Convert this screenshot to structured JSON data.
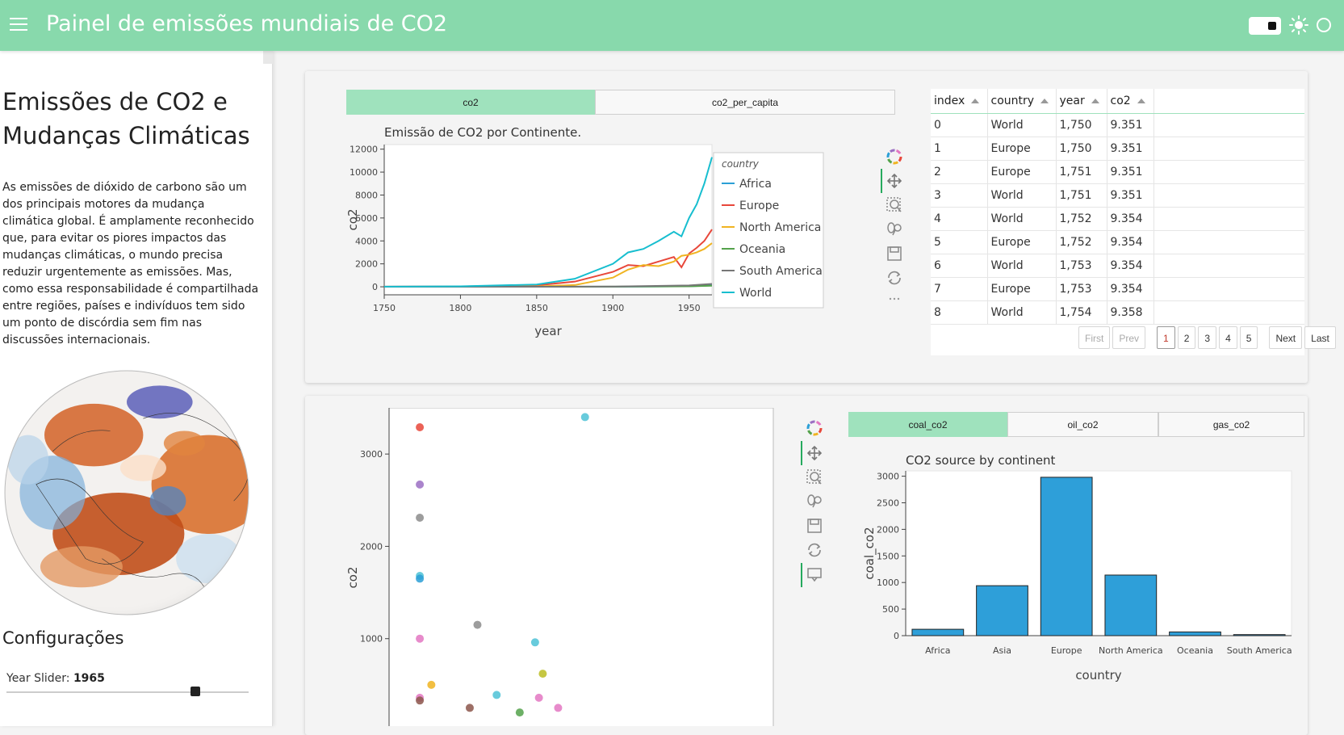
{
  "header": {
    "title": "Painel de emissões mundiais de CO2",
    "icons": [
      "menu-icon",
      "theme-toggle",
      "sun-icon",
      "circle-icon"
    ],
    "bg_color": "#88d9ac"
  },
  "sidebar": {
    "title": "Emissões de CO2 e Mudanças Climáticas",
    "paragraph": "As emissões de dióxido de carbono são um dos principais motores da mudança climática global. É amplamente reconhecido que, para evitar os piores impactos das mudanças climáticas, o mundo precisa reduzir urgentemente as emissões. Mas, como essa responsabilidade é compartilhada entre regiões, países e indivíduos tem sido um ponto de discórdia sem fim nas discussões internacionais.",
    "config_title": "Configurações",
    "slider_label": "Year Slider:",
    "slider_value": "1965",
    "slider_fraction": 0.78
  },
  "top_tabs": [
    {
      "label": "co2",
      "active": true
    },
    {
      "label": "co2_per_capita",
      "active": false
    }
  ],
  "bottom_tabs": [
    {
      "label": "coal_co2",
      "active": true
    },
    {
      "label": "oil_co2",
      "active": false
    },
    {
      "label": "gas_co2",
      "active": false
    }
  ],
  "table": {
    "columns": [
      "index",
      "country",
      "year",
      "co2"
    ],
    "rows": [
      [
        "0",
        "World",
        "1,750",
        "9.351"
      ],
      [
        "1",
        "Europe",
        "1,750",
        "9.351"
      ],
      [
        "2",
        "Europe",
        "1,751",
        "9.351"
      ],
      [
        "3",
        "World",
        "1,751",
        "9.351"
      ],
      [
        "4",
        "World",
        "1,752",
        "9.354"
      ],
      [
        "5",
        "Europe",
        "1,752",
        "9.354"
      ],
      [
        "6",
        "World",
        "1,753",
        "9.354"
      ],
      [
        "7",
        "Europe",
        "1,753",
        "9.354"
      ],
      [
        "8",
        "World",
        "1,754",
        "9.358"
      ]
    ],
    "pager": {
      "first": "First",
      "prev": "Prev",
      "pages": [
        "1",
        "2",
        "3",
        "4",
        "5"
      ],
      "current": "1",
      "next": "Next",
      "last": "Last"
    }
  },
  "toolbar_icons": [
    "bokeh-logo-icon",
    "pan-icon",
    "box-zoom-icon",
    "wheel-zoom-icon",
    "save-icon",
    "reset-icon",
    "hover-icon"
  ],
  "chart_data": [
    {
      "type": "line",
      "title": "Emissão de CO2 por Continente.",
      "xlabel": "year",
      "ylabel": "co2",
      "xlim": [
        1750,
        1965
      ],
      "ylim": [
        -700,
        12400
      ],
      "xticks": [
        "1750",
        "1800",
        "1850",
        "1900",
        "1950"
      ],
      "yticks": [
        "0",
        "2000",
        "4000",
        "6000",
        "8000",
        "10000",
        "12000"
      ],
      "legend_title": "country",
      "legend_position": "right",
      "series": [
        {
          "name": "Africa",
          "color": "#2b9fd6",
          "x": [
            1750,
            1850,
            1900,
            1950,
            1965
          ],
          "values": [
            0,
            0,
            5,
            45,
            120
          ]
        },
        {
          "name": "Europe",
          "color": "#e8473a",
          "x": [
            1750,
            1800,
            1850,
            1875,
            1900,
            1910,
            1920,
            1930,
            1940,
            1945,
            1950,
            1955,
            1960,
            1965
          ],
          "values": [
            9,
            35,
            130,
            450,
            1300,
            1900,
            1800,
            2200,
            2600,
            1700,
            2900,
            3400,
            4000,
            5000
          ]
        },
        {
          "name": "North America",
          "color": "#f0b421",
          "x": [
            1750,
            1800,
            1850,
            1875,
            1900,
            1910,
            1920,
            1930,
            1940,
            1945,
            1950,
            1955,
            1960,
            1965
          ],
          "values": [
            0,
            2,
            30,
            150,
            800,
            1500,
            1900,
            1800,
            2200,
            2700,
            2800,
            3000,
            3300,
            3800
          ]
        },
        {
          "name": "Oceania",
          "color": "#54a24b",
          "x": [
            1750,
            1850,
            1900,
            1950,
            1965
          ],
          "values": [
            0,
            0,
            10,
            40,
            90
          ]
        },
        {
          "name": "South America",
          "color": "#777777",
          "x": [
            1750,
            1850,
            1900,
            1950,
            1965
          ],
          "values": [
            0,
            0,
            20,
            120,
            250
          ]
        },
        {
          "name": "World",
          "color": "#17becf",
          "x": [
            1750,
            1800,
            1850,
            1875,
            1900,
            1910,
            1920,
            1930,
            1940,
            1945,
            1950,
            1955,
            1960,
            1965
          ],
          "values": [
            9,
            40,
            200,
            700,
            2000,
            3000,
            3300,
            4000,
            4800,
            4400,
            6000,
            7200,
            9000,
            11300
          ]
        }
      ]
    },
    {
      "type": "scatter",
      "xlabel": "",
      "ylabel": "co2",
      "ylim": [
        0,
        3500
      ],
      "yticks": [
        "1000",
        "2000",
        "3000"
      ],
      "points": [
        {
          "x": 0.08,
          "y": 3290,
          "color": "#e8473a"
        },
        {
          "x": 0.08,
          "y": 2670,
          "color": "#9b6fc3"
        },
        {
          "x": 0.08,
          "y": 2310,
          "color": "#8c8c8c"
        },
        {
          "x": 0.08,
          "y": 1680,
          "color": "#4dc2d6"
        },
        {
          "x": 0.08,
          "y": 1650,
          "color": "#2b9fd6"
        },
        {
          "x": 0.08,
          "y": 1000,
          "color": "#e377c2"
        },
        {
          "x": 0.08,
          "y": 360,
          "color": "#e377c2"
        },
        {
          "x": 0.08,
          "y": 330,
          "color": "#8c564b"
        },
        {
          "x": 0.11,
          "y": 500,
          "color": "#f0b421"
        },
        {
          "x": 0.23,
          "y": 1150,
          "color": "#8c8c8c"
        },
        {
          "x": 0.21,
          "y": 250,
          "color": "#8c564b"
        },
        {
          "x": 0.28,
          "y": 390,
          "color": "#4dc2d6"
        },
        {
          "x": 0.38,
          "y": 960,
          "color": "#4dc2d6"
        },
        {
          "x": 0.4,
          "y": 620,
          "color": "#bcbd22"
        },
        {
          "x": 0.39,
          "y": 360,
          "color": "#e377c2"
        },
        {
          "x": 0.44,
          "y": 250,
          "color": "#e377c2"
        },
        {
          "x": 0.34,
          "y": 200,
          "color": "#54a24b"
        },
        {
          "x": 0.51,
          "y": 3400,
          "color": "#4dc2d6"
        }
      ]
    },
    {
      "type": "bar",
      "title": "CO2 source by continent",
      "xlabel": "country",
      "ylabel": "coal_co2",
      "ylim": [
        0,
        3100
      ],
      "yticks": [
        "0",
        "500",
        "1000",
        "1500",
        "2000",
        "2500",
        "3000"
      ],
      "categories": [
        "Africa",
        "Asia",
        "Europe",
        "North America",
        "Oceania",
        "South America"
      ],
      "values": [
        120,
        940,
        2980,
        1140,
        70,
        20
      ],
      "color": "#2e9fd9"
    }
  ]
}
